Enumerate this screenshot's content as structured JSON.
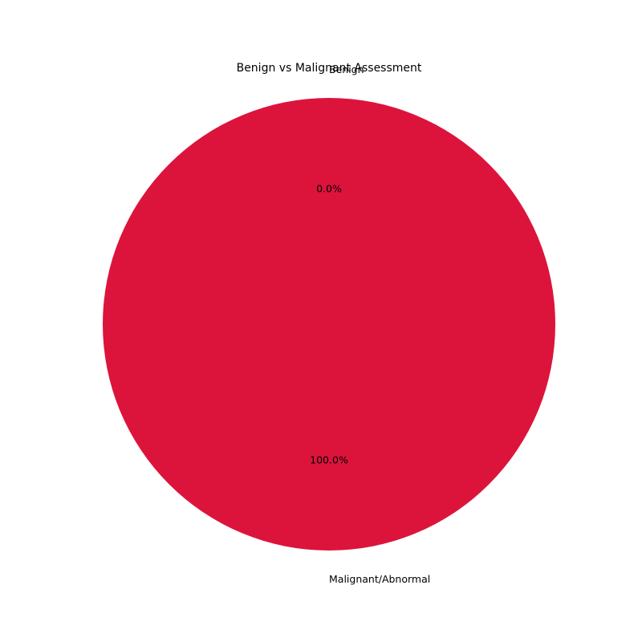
{
  "chart_data": {
    "type": "pie",
    "title": "Benign vs Malignant Assessment",
    "slices": [
      {
        "label": "Benign",
        "value": 0.0,
        "percent_label": "0.0%",
        "color": "#2e8b57"
      },
      {
        "label": "Malignant/Abnormal",
        "value": 100.0,
        "percent_label": "100.0%",
        "color": "#dc143c"
      }
    ],
    "start_angle_deg": 90,
    "direction": "counterclockwise",
    "legend": "none"
  }
}
